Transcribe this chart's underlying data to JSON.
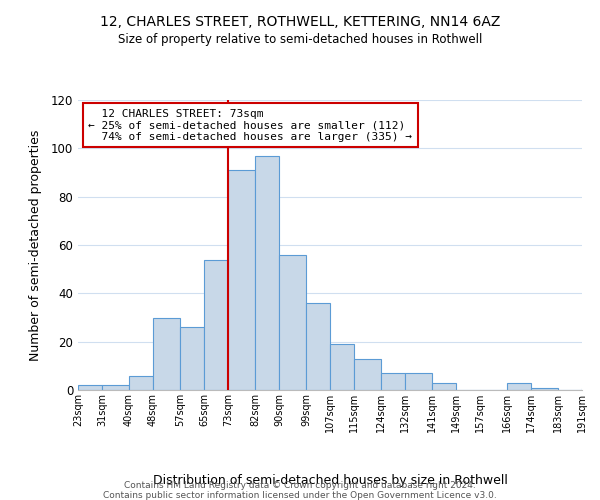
{
  "title": "12, CHARLES STREET, ROTHWELL, KETTERING, NN14 6AZ",
  "subtitle": "Size of property relative to semi-detached houses in Rothwell",
  "xlabel": "Distribution of semi-detached houses by size in Rothwell",
  "ylabel": "Number of semi-detached properties",
  "footer_line1": "Contains HM Land Registry data © Crown copyright and database right 2024.",
  "footer_line2": "Contains public sector information licensed under the Open Government Licence v3.0.",
  "annotation_title": "12 CHARLES STREET: 73sqm",
  "annotation_line1": "← 25% of semi-detached houses are smaller (112)",
  "annotation_line2": "74% of semi-detached houses are larger (335) →",
  "property_size": 73,
  "bar_edges": [
    23,
    31,
    40,
    48,
    57,
    65,
    73,
    82,
    90,
    99,
    107,
    115,
    124,
    132,
    141,
    149,
    157,
    166,
    174,
    183,
    191
  ],
  "bar_heights": [
    2,
    2,
    6,
    30,
    26,
    54,
    91,
    97,
    56,
    36,
    19,
    13,
    7,
    7,
    3,
    0,
    0,
    3,
    1,
    0,
    1
  ],
  "bar_color": "#c8d8e8",
  "bar_edge_color": "#5b9bd5",
  "marker_line_color": "#cc0000",
  "annotation_box_edge": "#cc0000",
  "background_color": "#ffffff",
  "grid_color": "#d0dff0",
  "ylim": [
    0,
    120
  ],
  "yticks": [
    0,
    20,
    40,
    60,
    80,
    100,
    120
  ]
}
